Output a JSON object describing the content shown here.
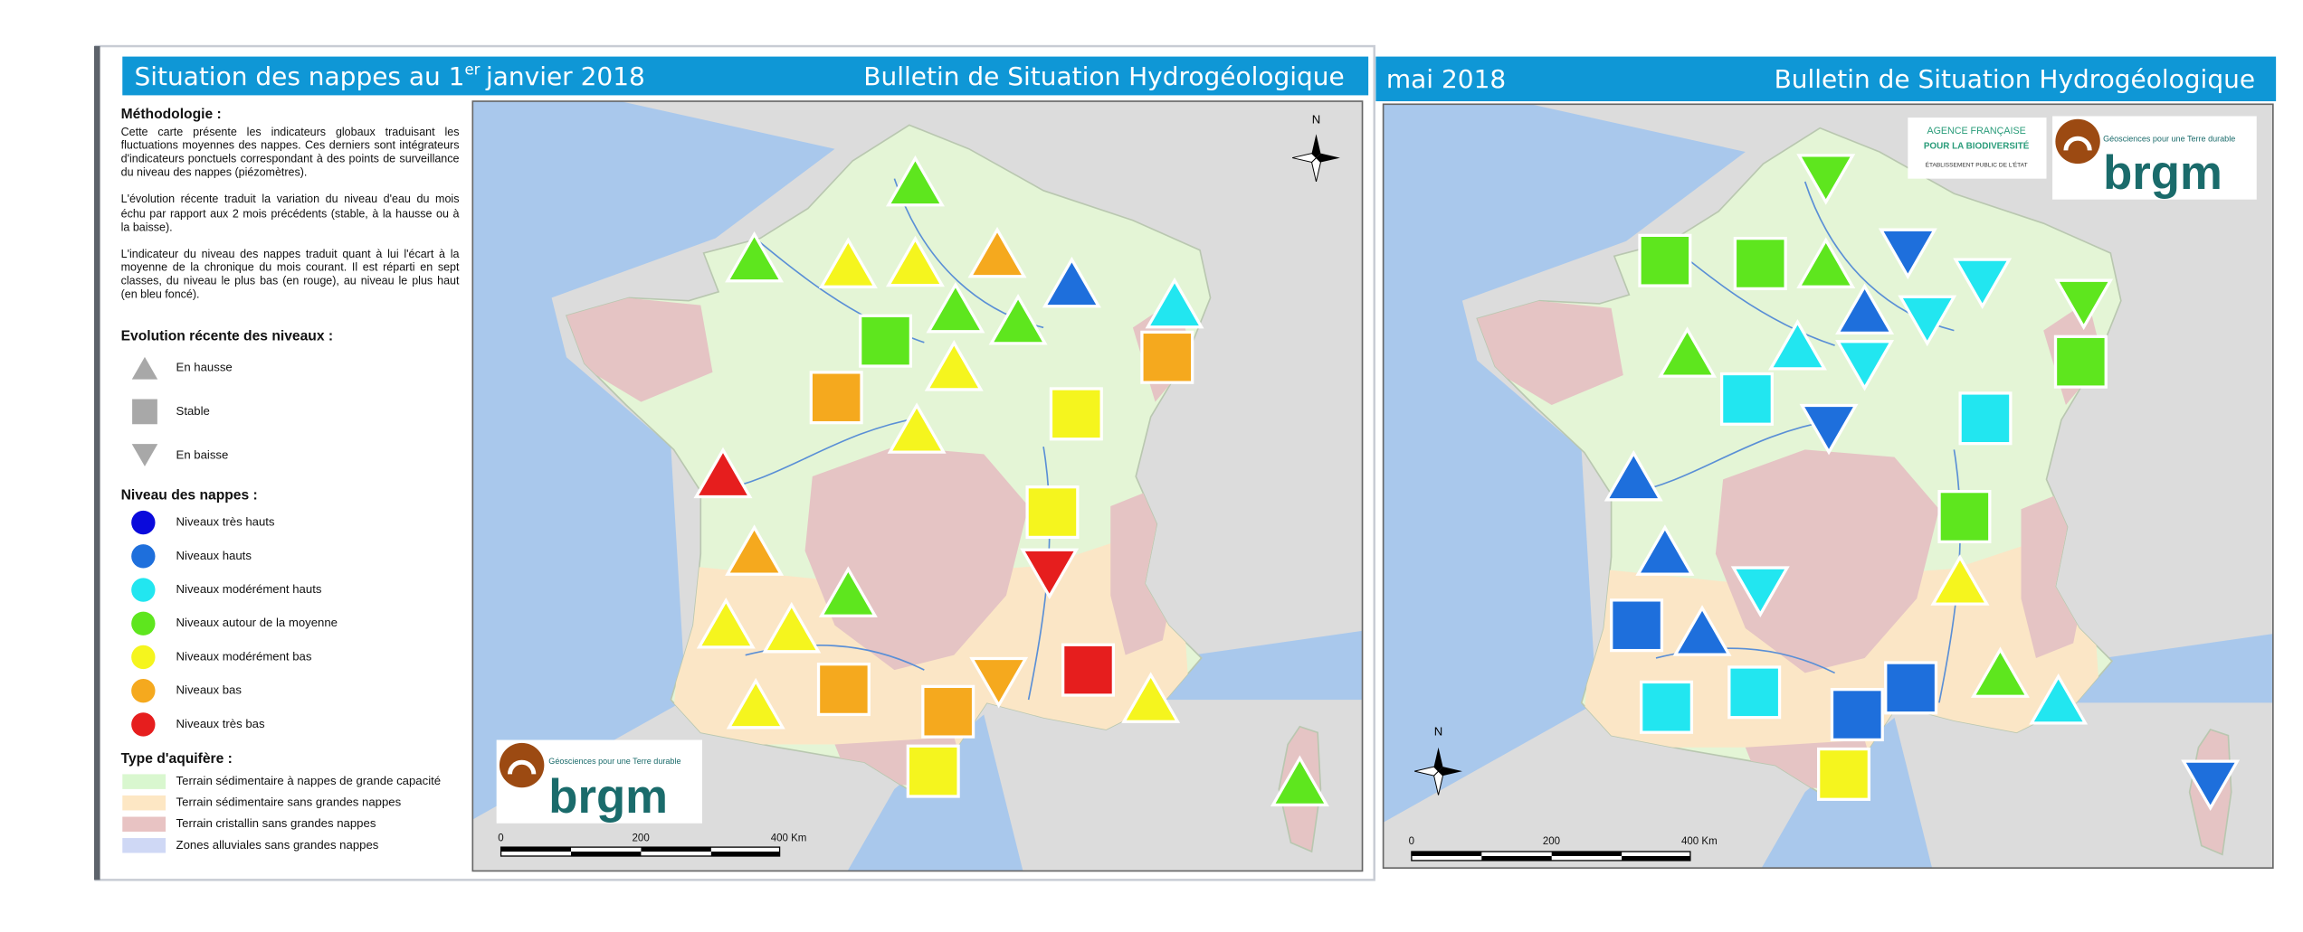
{
  "left_panel": {
    "title": {
      "main": "Situation des nappes au 1",
      "sup": "er",
      "rest": "janvier 2018"
    },
    "bulletin": "Bulletin de Situation Hydrogéologique",
    "methodology": {
      "heading": "Méthodologie :",
      "paragraphs": [
        "Cette carte présente les indicateurs globaux traduisant les fluctuations moyennes des nappes. Ces derniers sont intégrateurs d'indicateurs ponctuels correspondant à des points de surveillance du niveau des nappes (piézomètres).",
        "L'évolution récente traduit la variation du niveau d'eau du mois échu par rapport aux 2 mois précédents (stable, à la hausse ou à la baisse).",
        "L'indicateur du niveau des nappes traduit quant à lui l'écart à la moyenne de la chronique du mois courant. Il est réparti en sept classes, du niveau le plus bas (en rouge), au niveau le plus haut (en bleu foncé)."
      ]
    },
    "legend": {
      "evolution": {
        "heading": "Evolution récente des niveaux :",
        "items": [
          "En hausse",
          "Stable",
          "En baisse"
        ]
      },
      "levels": {
        "heading": "Niveau des nappes :",
        "items": [
          "Niveaux très hauts",
          "Niveaux hauts",
          "Niveaux modérément hauts",
          "Niveaux autour de la moyenne",
          "Niveaux modérément bas",
          "Niveaux bas",
          "Niveaux très bas"
        ]
      },
      "aquifer": {
        "heading": "Type d'aquifère :",
        "items": [
          "Terrain sédimentaire à nappes de grande capacité",
          "Terrain sédimentaire sans grandes nappes",
          "Terrain cristallin sans grandes nappes",
          "Zones alluviales sans grandes nappes"
        ]
      }
    },
    "north": "N",
    "scale": [
      "0",
      "200",
      "400 Km"
    ],
    "logo": {
      "tagline": "Géosciences pour une Terre durable",
      "name": "brgm"
    }
  },
  "right_panel": {
    "title": "mai 2018",
    "bulletin": "Bulletin de Situation Hydrogéologique",
    "north": "N",
    "scale": [
      "0",
      "200",
      "400 Km"
    ],
    "afb_logo": [
      "AGENCE FRANÇAISE",
      "POUR LA BIODIVERSITÉ",
      "ÉTABLISSEMENT PUBLIC DE L'ÉTAT"
    ],
    "logo": {
      "tagline": "Géosciences pour une Terre durable",
      "name": "brgm"
    }
  }
}
